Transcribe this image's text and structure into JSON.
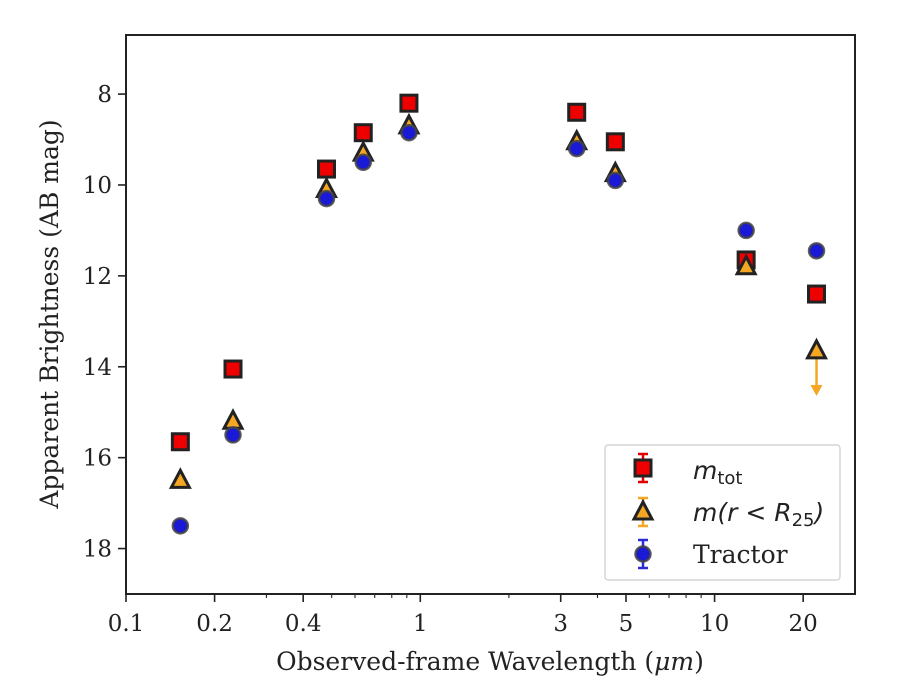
{
  "chart_data": {
    "type": "scatter",
    "xlabel_prefix": "Observed-frame Wavelength (",
    "xlabel_unit": "μm",
    "xlabel_suffix": ")",
    "ylabel": "Apparent Brightness (AB mag)",
    "xscale": "log",
    "xlim": [
      0.1,
      30
    ],
    "ylim": [
      19,
      6.7
    ],
    "y_inverted": true,
    "grid": false,
    "xticks": [
      {
        "value": 0.1,
        "label": "0.1"
      },
      {
        "value": 0.2,
        "label": "0.2"
      },
      {
        "value": 0.4,
        "label": "0.4"
      },
      {
        "value": 1,
        "label": "1"
      },
      {
        "value": 3,
        "label": "3"
      },
      {
        "value": 5,
        "label": "5"
      },
      {
        "value": 10,
        "label": "10"
      },
      {
        "value": 20,
        "label": "20"
      }
    ],
    "yticks": [
      {
        "value": 8,
        "label": "8"
      },
      {
        "value": 10,
        "label": "10"
      },
      {
        "value": 12,
        "label": "12"
      },
      {
        "value": 14,
        "label": "14"
      },
      {
        "value": 16,
        "label": "16"
      },
      {
        "value": 18,
        "label": "18"
      }
    ],
    "legend_position": "lower-right",
    "series": [
      {
        "name": "m_tot",
        "marker": "square",
        "fill": "#ee0000",
        "edge": "#222222",
        "errcolor": "#dd0000",
        "points": [
          {
            "x": 0.153,
            "y": 15.65
          },
          {
            "x": 0.231,
            "y": 14.05
          },
          {
            "x": 0.48,
            "y": 9.65
          },
          {
            "x": 0.64,
            "y": 8.85
          },
          {
            "x": 0.915,
            "y": 8.2
          },
          {
            "x": 3.4,
            "y": 8.4
          },
          {
            "x": 4.6,
            "y": 9.05
          },
          {
            "x": 12.8,
            "y": 11.65
          },
          {
            "x": 22.2,
            "y": 12.4
          }
        ]
      },
      {
        "name": "m(r<R25)",
        "marker": "triangle",
        "fill": "#f5a623",
        "edge": "#222222",
        "errcolor": "#f5a623",
        "points": [
          {
            "x": 0.153,
            "y": 16.5
          },
          {
            "x": 0.231,
            "y": 15.2
          },
          {
            "x": 0.48,
            "y": 10.1
          },
          {
            "x": 0.64,
            "y": 9.3
          },
          {
            "x": 0.915,
            "y": 8.7
          },
          {
            "x": 3.4,
            "y": 9.05
          },
          {
            "x": 4.6,
            "y": 9.75
          },
          {
            "x": 12.8,
            "y": 11.8
          },
          {
            "x": 22.2,
            "y": 13.65,
            "upper_limit": true,
            "limit_to": 14.6
          }
        ]
      },
      {
        "name": "Tractor",
        "marker": "circle",
        "fill": "#1a1ad6",
        "edge": "#444444",
        "errcolor": "#2b2bd6",
        "points": [
          {
            "x": 0.153,
            "y": 17.5
          },
          {
            "x": 0.231,
            "y": 15.5
          },
          {
            "x": 0.48,
            "y": 10.3
          },
          {
            "x": 0.64,
            "y": 9.5
          },
          {
            "x": 0.915,
            "y": 8.85
          },
          {
            "x": 3.4,
            "y": 9.2
          },
          {
            "x": 4.6,
            "y": 9.9
          },
          {
            "x": 12.8,
            "y": 11.0
          },
          {
            "x": 22.2,
            "y": 11.45
          }
        ]
      }
    ],
    "legend": {
      "mtot_base": "m",
      "mtot_sub": "tot",
      "r25_prefix": "m(r < R",
      "r25_sub": "25",
      "r25_suffix": ")",
      "tractor": "Tractor"
    }
  }
}
